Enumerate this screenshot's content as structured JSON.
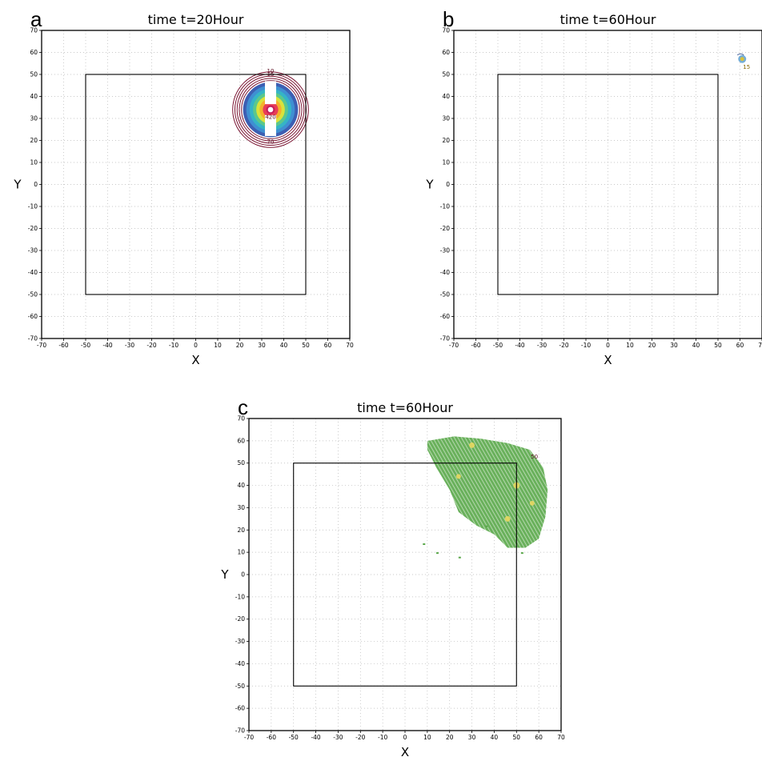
{
  "chart_data": [
    {
      "panel_letter": "a",
      "type": "contour",
      "title": "time  t=20Hour",
      "xlabel": "X",
      "ylabel": "Y",
      "xlim": [
        -70,
        70
      ],
      "ylim": [
        -70,
        70
      ],
      "xticks": [
        -70,
        -60,
        -50,
        -40,
        -30,
        -20,
        -10,
        0,
        10,
        20,
        30,
        40,
        50,
        60,
        70
      ],
      "yticks": [
        -70,
        -60,
        -50,
        -40,
        -30,
        -20,
        -10,
        0,
        10,
        20,
        30,
        40,
        50,
        60,
        70
      ],
      "grid": true,
      "inner_square": {
        "x": [
          -50,
          50
        ],
        "y": [
          -50,
          50
        ]
      },
      "field_center": [
        34,
        34
      ],
      "filled_levels": [
        {
          "r": 12.5,
          "color": "#3d5fb3"
        },
        {
          "r": 11,
          "color": "#3f8fd2"
        },
        {
          "r": 9.5,
          "color": "#35b4c6"
        },
        {
          "r": 8,
          "color": "#5bc78d"
        },
        {
          "r": 6.5,
          "color": "#d9e23b"
        },
        {
          "r": 5,
          "color": "#f5b02c"
        },
        {
          "r": 3.5,
          "color": "#e83e56"
        },
        {
          "r": 2,
          "color": "#c81e5a"
        }
      ],
      "contour_rings": [
        13.2,
        14.2,
        15.2,
        16.2,
        17.2
      ],
      "contour_color": "#7a1432",
      "contour_labels": [
        "10",
        "15",
        "70",
        "420"
      ]
    },
    {
      "panel_letter": "b",
      "type": "contour",
      "title": "time  t=60Hour",
      "xlabel": "X",
      "ylabel": "Y",
      "xlim": [
        -70,
        70
      ],
      "ylim": [
        -70,
        70
      ],
      "xticks": [
        -70,
        -60,
        -50,
        -40,
        -30,
        -20,
        -10,
        0,
        10,
        20,
        30,
        40,
        50,
        60,
        70
      ],
      "yticks": [
        -70,
        -60,
        -50,
        -40,
        -30,
        -20,
        -10,
        0,
        10,
        20,
        30,
        40,
        50,
        60,
        70
      ],
      "grid": true,
      "inner_square": {
        "x": [
          -50,
          50
        ],
        "y": [
          -50,
          50
        ]
      },
      "field_center": [
        61,
        57
      ],
      "contour_labels": [
        "15"
      ]
    },
    {
      "panel_letter": "c",
      "type": "contour",
      "title": "time  t=60Hour",
      "xlabel": "X",
      "ylabel": "Y",
      "xlim": [
        -70,
        70
      ],
      "ylim": [
        -70,
        70
      ],
      "xticks": [
        -70,
        -60,
        -50,
        -40,
        -30,
        -20,
        -10,
        0,
        10,
        20,
        30,
        40,
        50,
        60,
        70
      ],
      "yticks": [
        -70,
        -60,
        -50,
        -40,
        -30,
        -20,
        -10,
        0,
        10,
        20,
        30,
        40,
        50,
        60,
        70
      ],
      "grid": true,
      "inner_square": {
        "x": [
          -50,
          50
        ],
        "y": [
          -50,
          50
        ]
      },
      "field_color": "#5aa84a",
      "field_highlight": "#e8d860",
      "contour_labels": [
        "50"
      ]
    }
  ]
}
